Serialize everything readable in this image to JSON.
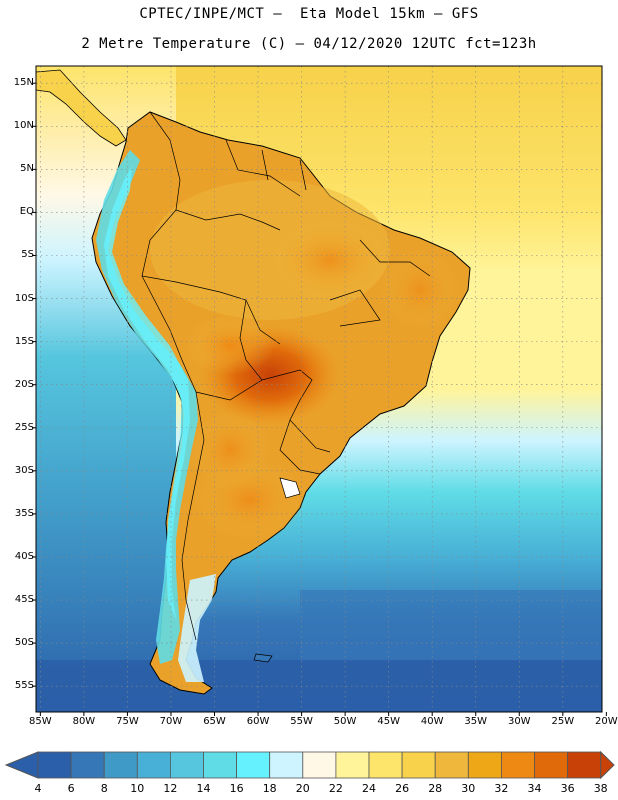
{
  "header": {
    "line1": "CPTEC/INPE/MCT –  Eta Model 15km – GFS",
    "line2": "2 Metre Temperature (C) – 04/12/2020 12UTC fct=123h"
  },
  "map": {
    "variable": "2 Metre Temperature",
    "units": "C",
    "lat_labels": [
      "15N",
      "10N",
      "5N",
      "EQ",
      "5S",
      "10S",
      "15S",
      "20S",
      "25S",
      "30S",
      "35S",
      "40S",
      "45S",
      "50S",
      "55S"
    ],
    "lon_labels": [
      "85W",
      "80W",
      "75W",
      "70W",
      "65W",
      "60W",
      "55W",
      "50W",
      "45W",
      "40W",
      "35W",
      "30W",
      "25W",
      "20W"
    ],
    "lat_range": [
      17,
      -58
    ],
    "lon_range": [
      -85.5,
      -20.5
    ],
    "ocean_color": "#fbe08a",
    "land_color": "#e9a12a"
  },
  "colorbar": {
    "labels": [
      "4",
      "6",
      "8",
      "10",
      "12",
      "14",
      "16",
      "18",
      "20",
      "22",
      "24",
      "26",
      "28",
      "30",
      "32",
      "34",
      "36",
      "38"
    ],
    "colors": [
      "#2b5fa9",
      "#3677b8",
      "#409ac8",
      "#48b0d6",
      "#56c6de",
      "#5fdce6",
      "#66f1ff",
      "#cdf4ff",
      "#fff8e6",
      "#fff49a",
      "#fde46a",
      "#f7d24a",
      "#efb83c",
      "#eea716",
      "#ee8a14",
      "#e06a0a",
      "#c84208"
    ],
    "under_color": "#2b5fa9",
    "over_color": "#c84208"
  }
}
